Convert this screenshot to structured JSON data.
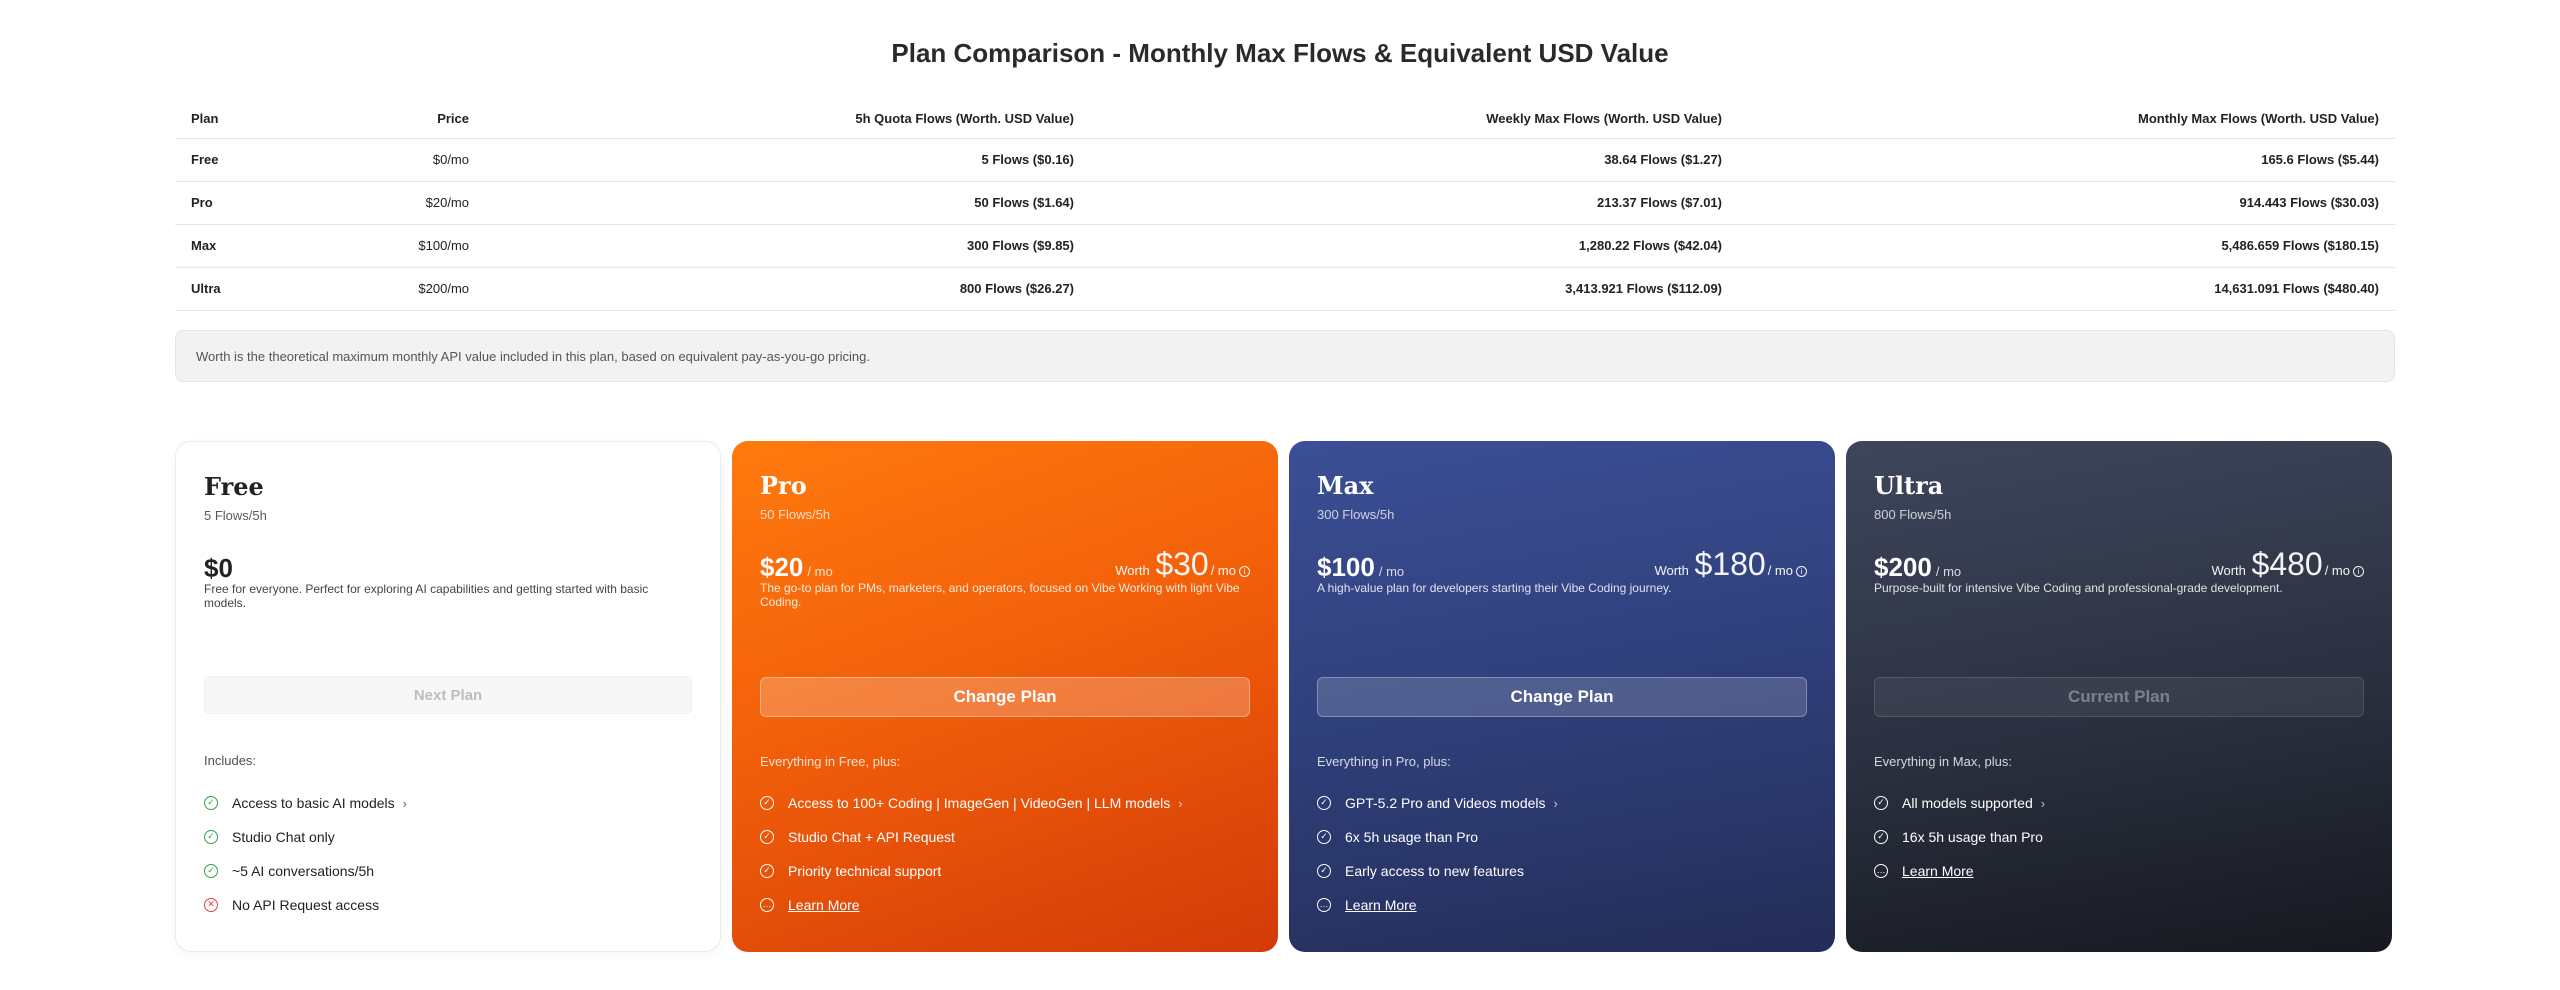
{
  "title": "Plan Comparison - Monthly Max Flows & Equivalent USD Value",
  "table": {
    "headers": [
      "Plan",
      "Price",
      "5h Quota Flows (Worth. USD Value)",
      "Weekly Max Flows (Worth. USD Value)",
      "Monthly Max Flows (Worth. USD Value)"
    ],
    "rows": [
      [
        "Free",
        "$0/mo",
        "5 Flows ($0.16)",
        "38.64 Flows ($1.27)",
        "165.6 Flows ($5.44)"
      ],
      [
        "Pro",
        "$20/mo",
        "50 Flows ($1.64)",
        "213.37 Flows ($7.01)",
        "914.443 Flows ($30.03)"
      ],
      [
        "Max",
        "$100/mo",
        "300 Flows ($9.85)",
        "1,280.22 Flows ($42.04)",
        "5,486.659 Flows ($180.15)"
      ],
      [
        "Ultra",
        "$200/mo",
        "800 Flows ($26.27)",
        "3,413.921 Flows ($112.09)",
        "14,631.091 Flows ($480.40)"
      ]
    ]
  },
  "note": "Worth is the theoretical maximum monthly API value included in this plan, based on equivalent pay-as-you-go pricing.",
  "cards": {
    "free": {
      "name": "Free",
      "flows": "5 Flows/5h",
      "price": "$0",
      "desc": "Free for everyone. Perfect for exploring AI capabilities and getting started with basic models.",
      "cta": "Next Plan",
      "includes": "Includes:",
      "features": [
        "Access to basic AI models",
        "Studio Chat only",
        "~5 AI conversations/5h",
        "No API Request access"
      ]
    },
    "pro": {
      "name": "Pro",
      "flows": "50 Flows/5h",
      "price": "$20",
      "per": "/ mo",
      "worth_label": "Worth",
      "worth": "$30",
      "worth_per": "/ mo",
      "desc": "The go-to plan for PMs, marketers, and operators, focused on Vibe Working with light Vibe Coding.",
      "cta": "Change Plan",
      "includes": "Everything in Free, plus:",
      "features": [
        "Access to 100+ Coding | ImageGen | VideoGen | LLM models",
        "Studio Chat + API Request",
        "Priority technical support",
        "Learn More"
      ]
    },
    "max": {
      "name": "Max",
      "flows": "300 Flows/5h",
      "price": "$100",
      "per": "/ mo",
      "worth_label": "Worth",
      "worth": "$180",
      "worth_per": "/ mo",
      "desc": "A high-value plan for developers starting their Vibe Coding journey.",
      "cta": "Change Plan",
      "includes": "Everything in Pro, plus:",
      "features": [
        "GPT-5.2 Pro and Videos models",
        "6x 5h usage than Pro",
        "Early access to new features",
        "Learn More"
      ]
    },
    "ultra": {
      "name": "Ultra",
      "flows": "800 Flows/5h",
      "price": "$200",
      "per": "/ mo",
      "worth_label": "Worth",
      "worth": "$480",
      "worth_per": "/ mo",
      "desc": "Purpose-built for intensive Vibe Coding and professional-grade development.",
      "cta": "Current Plan",
      "includes": "Everything in Max, plus:",
      "features": [
        "All models supported",
        "16x 5h usage than Pro",
        "Learn More"
      ]
    }
  },
  "icons": {
    "check": "check-circle-icon",
    "cross": "x-circle-icon",
    "info": "info-icon",
    "more": "dots-circle-icon",
    "chevron": "chevron-right-icon"
  },
  "colors": {
    "pro_accent": "#f25f0a",
    "max_accent": "#2f3f7a",
    "ultra_accent": "#2a303f",
    "check_green": "#2fa24a",
    "cross_red": "#e0443e"
  }
}
